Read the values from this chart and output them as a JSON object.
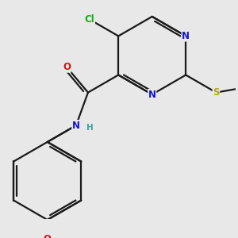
{
  "bg_color": "#e8e8e8",
  "bond_color": "#1a1a1a",
  "bond_width": 1.6,
  "atom_colors": {
    "N": "#1515cc",
    "O": "#cc1515",
    "S": "#aaaa10",
    "Cl": "#18aa18",
    "H": "#40a0a0"
  },
  "font_size": 8.5,
  "fig_size": [
    3.0,
    3.0
  ],
  "dpi": 100,
  "xlim": [
    -2.8,
    3.2
  ],
  "ylim": [
    -3.5,
    2.0
  ]
}
